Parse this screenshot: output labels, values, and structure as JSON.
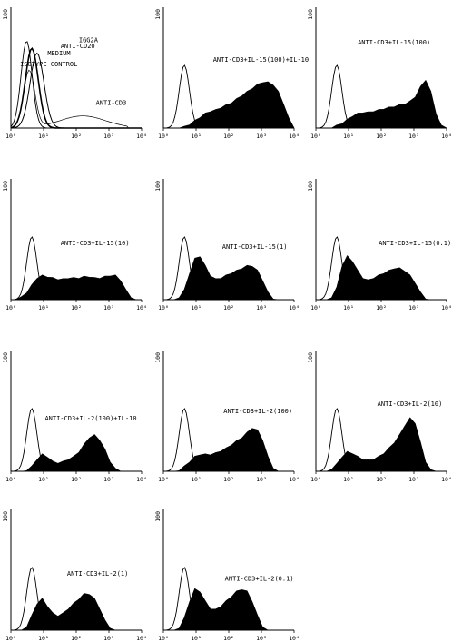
{
  "chart_data": [
    {
      "type": "area",
      "panel": 1,
      "col": 0,
      "row": 0,
      "x_ticks": [
        "10⁰",
        "10¹",
        "10²",
        "10³",
        "10⁴"
      ],
      "y_max_label": "100",
      "labels": [
        "ISOTYPE CONTROL",
        "MEDIUM",
        "ANTI-CD20",
        "IGG2A",
        "ANTI-CD3"
      ],
      "overlay": true
    },
    {
      "type": "area",
      "panel": 2,
      "col": 1,
      "row": 0,
      "label": "ANTI-CD3+IL-15(100)+IL-10",
      "x_ticks": [
        "10⁰",
        "10¹",
        "10²",
        "10³",
        "10⁴"
      ],
      "y_max_label": "100",
      "profile": [
        0,
        0,
        0,
        0,
        1,
        3,
        6,
        9,
        12,
        14,
        15,
        17,
        19,
        21,
        24,
        27,
        30,
        33,
        36,
        38,
        38,
        36,
        30,
        20,
        8,
        0
      ]
    },
    {
      "type": "area",
      "panel": 3,
      "col": 2,
      "row": 0,
      "label": "ANTI-CD3+IL-15(100)",
      "x_ticks": [
        "10⁰",
        "10¹",
        "10²",
        "10³",
        "10⁴"
      ],
      "y_max_label": "100",
      "profile": [
        0,
        0,
        0,
        0,
        2,
        4,
        7,
        10,
        12,
        13,
        13,
        14,
        15,
        16,
        17,
        18,
        19,
        20,
        22,
        26,
        34,
        40,
        30,
        12,
        2,
        0
      ]
    },
    {
      "type": "area",
      "panel": 4,
      "col": 0,
      "row": 1,
      "label": "ANTI-CD3+IL-15(10)",
      "x_ticks": [
        "10⁰",
        "10¹",
        "10²",
        "10³",
        "10⁴"
      ],
      "y_max_label": "100",
      "profile": [
        0,
        0,
        2,
        6,
        12,
        18,
        20,
        19,
        18,
        17,
        17,
        18,
        18,
        18,
        19,
        19,
        18,
        18,
        19,
        20,
        20,
        16,
        8,
        2,
        0,
        0
      ]
    },
    {
      "type": "area",
      "panel": 5,
      "col": 1,
      "row": 1,
      "label": "ANTI-CD3+IL-15(1)",
      "x_ticks": [
        "10⁰",
        "10¹",
        "10²",
        "10³",
        "10⁴"
      ],
      "y_max_label": "100",
      "profile": [
        0,
        0,
        0,
        2,
        8,
        22,
        34,
        36,
        28,
        20,
        17,
        18,
        20,
        22,
        24,
        26,
        28,
        28,
        24,
        16,
        6,
        1,
        0,
        0,
        0,
        0
      ]
    },
    {
      "type": "area",
      "panel": 6,
      "col": 2,
      "row": 1,
      "label": "ANTI-CD3+IL-15(0.1)",
      "x_ticks": [
        "10⁰",
        "10¹",
        "10²",
        "10³",
        "10⁴"
      ],
      "y_max_label": "100",
      "profile": [
        0,
        0,
        0,
        2,
        10,
        28,
        36,
        32,
        24,
        18,
        16,
        18,
        20,
        22,
        24,
        26,
        26,
        24,
        20,
        14,
        6,
        1,
        0,
        0,
        0,
        0
      ]
    },
    {
      "type": "area",
      "panel": 7,
      "col": 0,
      "row": 2,
      "label": "ANTI-CD3+IL-2(100)+IL-10",
      "x_ticks": [
        "10⁰",
        "10¹",
        "10²",
        "10³",
        "10⁴"
      ],
      "y_max_label": "100",
      "profile": [
        0,
        0,
        0,
        1,
        4,
        10,
        14,
        12,
        8,
        7,
        8,
        10,
        12,
        16,
        22,
        28,
        30,
        26,
        18,
        8,
        2,
        0,
        0,
        0,
        0,
        0
      ]
    },
    {
      "type": "area",
      "panel": 8,
      "col": 1,
      "row": 2,
      "label": "ANTI-CD3+IL-2(100)",
      "x_ticks": [
        "10⁰",
        "10¹",
        "10²",
        "10³",
        "10⁴"
      ],
      "y_max_label": "100",
      "profile": [
        0,
        0,
        0,
        1,
        4,
        8,
        12,
        14,
        14,
        14,
        15,
        17,
        19,
        22,
        25,
        28,
        32,
        36,
        34,
        26,
        12,
        3,
        0,
        0,
        0,
        0
      ]
    },
    {
      "type": "area",
      "panel": 9,
      "col": 2,
      "row": 2,
      "label": "ANTI-CD3+IL-2(10)",
      "x_ticks": [
        "10⁰",
        "10¹",
        "10²",
        "10³",
        "10⁴"
      ],
      "y_max_label": "100",
      "profile": [
        0,
        0,
        0,
        2,
        6,
        12,
        16,
        15,
        12,
        10,
        9,
        10,
        12,
        15,
        19,
        24,
        30,
        38,
        44,
        40,
        24,
        8,
        1,
        0,
        0,
        0
      ]
    },
    {
      "type": "area",
      "panel": 10,
      "col": 0,
      "row": 3,
      "label": "ANTI-CD3+IL-2(1)",
      "x_ticks": [
        "10⁰",
        "10¹",
        "10²",
        "10³",
        "10⁴"
      ],
      "y_max_label": "100",
      "profile": [
        0,
        0,
        0,
        3,
        12,
        22,
        26,
        20,
        14,
        12,
        14,
        18,
        22,
        26,
        30,
        30,
        26,
        18,
        8,
        2,
        0,
        0,
        0,
        0,
        0,
        0
      ]
    },
    {
      "type": "area",
      "panel": 11,
      "col": 1,
      "row": 3,
      "label": "ANTI-CD3+IL-2(0.1)",
      "x_ticks": [
        "10⁰",
        "10¹",
        "10²",
        "10³",
        "10⁴"
      ],
      "y_max_label": "100",
      "profile": [
        0,
        0,
        0,
        2,
        10,
        24,
        34,
        32,
        24,
        18,
        17,
        20,
        24,
        28,
        32,
        34,
        32,
        24,
        12,
        3,
        0,
        0,
        0,
        0,
        0,
        0
      ]
    }
  ]
}
